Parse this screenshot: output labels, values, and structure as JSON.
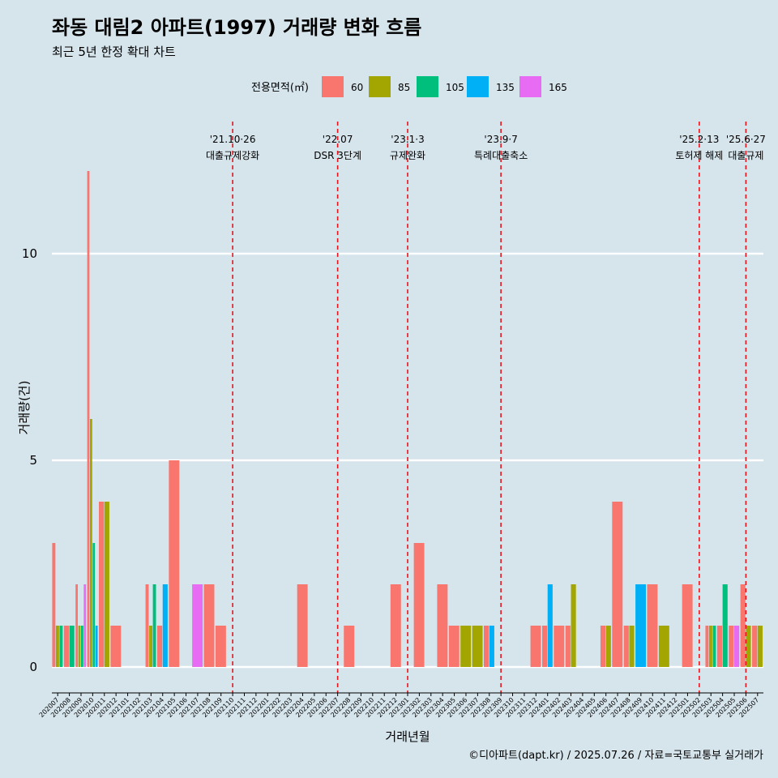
{
  "title": "좌동 대림2 아파트(1997) 거래량 변화 흐름",
  "subtitle": "최근 5년 한정 확대 차트",
  "caption": "©디아파트(dapt.kr) / 2025.07.26 / 자료=국토교통부 실거래가",
  "legend": {
    "title": "전용면적(㎡)",
    "items": [
      {
        "label": "60",
        "color": "#f8766d"
      },
      {
        "label": "85",
        "color": "#a3a500"
      },
      {
        "label": "105",
        "color": "#00bf7d"
      },
      {
        "label": "135",
        "color": "#00b0f6"
      },
      {
        "label": "165",
        "color": "#e76bf3"
      }
    ]
  },
  "chart_data": {
    "type": "bar",
    "title": "좌동 대림2 아파트(1997) 거래량 변화 흐름",
    "subtitle": "최근 5년 한정 확대 차트",
    "xlabel": "거래년월",
    "ylabel": "거래량(건)",
    "ylim": [
      0,
      12
    ],
    "yticks": [
      0,
      5,
      10
    ],
    "grid": true,
    "legend_position": "top",
    "categories": [
      "202007",
      "202008",
      "202009",
      "202010",
      "202011",
      "202012",
      "202101",
      "202102",
      "202103",
      "202104",
      "202105",
      "202106",
      "202107",
      "202108",
      "202109",
      "202110",
      "202111",
      "202112",
      "202201",
      "202202",
      "202203",
      "202204",
      "202205",
      "202206",
      "202207",
      "202208",
      "202209",
      "202210",
      "202211",
      "202212",
      "202301",
      "202302",
      "202303",
      "202304",
      "202305",
      "202306",
      "202307",
      "202308",
      "202309",
      "202310",
      "202311",
      "202312",
      "202401",
      "202402",
      "202403",
      "202404",
      "202405",
      "202406",
      "202407",
      "202408",
      "202409",
      "202410",
      "202411",
      "202412",
      "202501",
      "202502",
      "202503",
      "202504",
      "202505",
      "202506",
      "202507"
    ],
    "series": [
      {
        "name": "60",
        "values": [
          3,
          1,
          2,
          12,
          4,
          1,
          0,
          0,
          2,
          1,
          5,
          0,
          0,
          2,
          1,
          0,
          0,
          0,
          0,
          0,
          0,
          2,
          0,
          0,
          0,
          1,
          0,
          0,
          0,
          2,
          0,
          3,
          0,
          2,
          1,
          0,
          0,
          1,
          0,
          0,
          0,
          1,
          1,
          1,
          1,
          0,
          0,
          1,
          4,
          1,
          0,
          2,
          0,
          0,
          2,
          0,
          1,
          1,
          1,
          2,
          1
        ]
      },
      {
        "name": "85",
        "values": [
          1,
          0,
          1,
          6,
          4,
          0,
          0,
          0,
          1,
          0,
          0,
          0,
          0,
          0,
          0,
          0,
          0,
          0,
          0,
          0,
          0,
          0,
          0,
          0,
          0,
          0,
          0,
          0,
          0,
          0,
          0,
          0,
          0,
          0,
          0,
          1,
          1,
          0,
          0,
          0,
          0,
          0,
          0,
          0,
          2,
          0,
          0,
          1,
          0,
          1,
          0,
          0,
          1,
          0,
          0,
          0,
          1,
          0,
          0,
          1,
          1
        ]
      },
      {
        "name": "105",
        "values": [
          1,
          1,
          1,
          3,
          0,
          0,
          0,
          0,
          2,
          0,
          0,
          0,
          0,
          0,
          0,
          0,
          0,
          0,
          0,
          0,
          0,
          0,
          0,
          0,
          0,
          0,
          0,
          0,
          0,
          0,
          0,
          0,
          0,
          0,
          0,
          0,
          0,
          0,
          0,
          0,
          0,
          0,
          0,
          0,
          0,
          0,
          0,
          0,
          0,
          0,
          0,
          0,
          0,
          0,
          0,
          0,
          1,
          2,
          0,
          0,
          0
        ]
      },
      {
        "name": "135",
        "values": [
          0,
          0,
          0,
          1,
          0,
          0,
          0,
          0,
          0,
          2,
          0,
          0,
          0,
          0,
          0,
          0,
          0,
          0,
          0,
          0,
          0,
          0,
          0,
          0,
          0,
          0,
          0,
          0,
          0,
          0,
          0,
          0,
          0,
          0,
          0,
          0,
          0,
          1,
          0,
          0,
          0,
          0,
          2,
          0,
          0,
          0,
          0,
          0,
          0,
          0,
          2,
          0,
          0,
          0,
          0,
          0,
          0,
          0,
          0,
          0,
          0
        ]
      },
      {
        "name": "165",
        "values": [
          0,
          0,
          2,
          0,
          0,
          0,
          0,
          0,
          0,
          0,
          0,
          0,
          2,
          0,
          0,
          0,
          0,
          0,
          0,
          0,
          0,
          0,
          0,
          0,
          0,
          0,
          0,
          0,
          0,
          0,
          0,
          0,
          0,
          0,
          0,
          0,
          0,
          0,
          0,
          0,
          0,
          0,
          0,
          0,
          0,
          0,
          0,
          0,
          0,
          0,
          0,
          0,
          0,
          0,
          0,
          0,
          0,
          0,
          1,
          0,
          0
        ]
      }
    ],
    "events": [
      {
        "at": "202110",
        "date": "'21.10·26",
        "label": "대출규제강화"
      },
      {
        "at": "202207",
        "date": "'22.07",
        "label": "DSR 3단계"
      },
      {
        "at": "202301",
        "date": "'23.1·3",
        "label": "규제완화"
      },
      {
        "at": "202309",
        "date": "'23.9·7",
        "label": "특례대출축소"
      },
      {
        "at": "202502",
        "date": "'25.2·13",
        "label": "토허제 해제"
      },
      {
        "at": "202506",
        "date": "'25.6·27",
        "label": "대출규제"
      }
    ]
  }
}
